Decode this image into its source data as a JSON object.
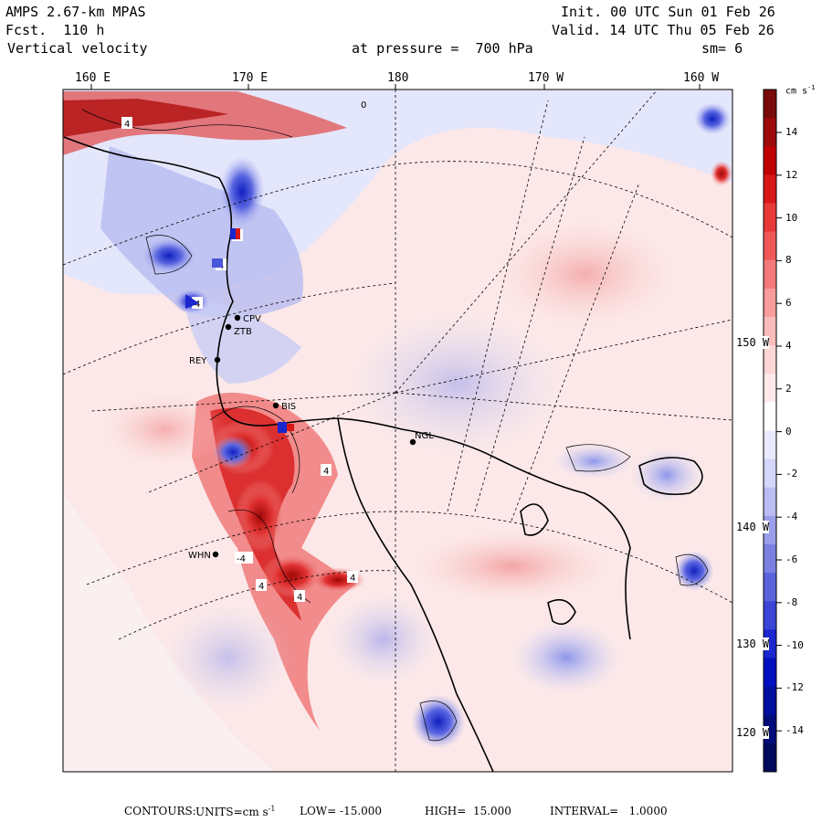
{
  "header": {
    "model": "AMPS 2.67-km MPAS",
    "forecast": "Fcst.  110 h",
    "field": "Vertical velocity",
    "level": "at pressure =  700 hPa",
    "init": "Init. 00 UTC Sun 01 Feb 26",
    "valid": "Valid. 14 UTC Thu 05 Feb 26",
    "smooth": "sm= 6"
  },
  "longitude_labels": [
    "160 E",
    "170 E",
    "180",
    "170 W",
    "160 W"
  ],
  "latitude_labels": [
    "150 W",
    "140 W",
    "130 W",
    "120 W"
  ],
  "stations": [
    "CPV",
    "ZTB",
    "REY",
    "BIS",
    "NGL",
    "WHN"
  ],
  "contour_labels": [
    "4",
    "4",
    "4",
    "4",
    "-4",
    "4",
    "4",
    "4",
    "4",
    "0"
  ],
  "colorbar": {
    "unit": "cm s",
    "unit_exp": "-1",
    "ticks": [
      "14",
      "12",
      "10",
      "8",
      "6",
      "4",
      "2",
      "0",
      "-2",
      "-4",
      "-6",
      "-8",
      "-10",
      "-12",
      "-14"
    ],
    "colors": [
      "#7a0a0a",
      "#9e0a0a",
      "#c00000",
      "#d81818",
      "#e83838",
      "#f05858",
      "#f47a7a",
      "#f89c9c",
      "#fbbcbc",
      "#fdd6d6",
      "#feeaea",
      "#ffffff",
      "#eaeaff",
      "#d4d6fa",
      "#babcf2",
      "#9a9eea",
      "#7a80e2",
      "#5a62dc",
      "#3a44d6",
      "#1a26ce",
      "#0010c0",
      "#000e9e",
      "#000c7a",
      "#000a5c"
    ]
  },
  "footer": {
    "contours": "CONTOURS:",
    "units_label": "UNITS=cm s",
    "units_exp": "-1",
    "low": "LOW= -15.000",
    "high": "HIGH=  15.000",
    "interval": "INTERVAL=   1.0000"
  },
  "colors": {
    "background": "#fce8e8",
    "upward": "#e04040",
    "downward": "#5566dd",
    "coast": "#000000"
  }
}
